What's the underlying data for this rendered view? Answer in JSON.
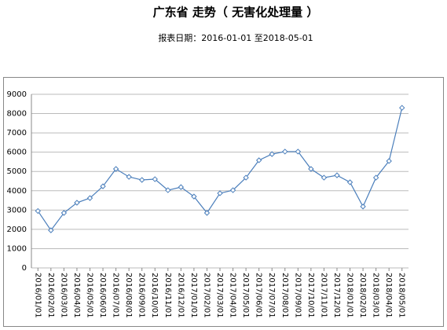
{
  "chart_data": {
    "type": "line",
    "title": "广东省  走势（  无害化处理量  ）",
    "subtitle": "报表日期：2016-01-01 至2018-05-01",
    "categories": [
      "2016/01/01",
      "2016/02/01",
      "2016/03/01",
      "2016/04/01",
      "2016/05/01",
      "2016/06/01",
      "2016/07/01",
      "2016/08/01",
      "2016/09/01",
      "2016/10/01",
      "2016/11/01",
      "2016/12/01",
      "2017/01/01",
      "2017/02/01",
      "2017/03/01",
      "2017/04/01",
      "2017/05/01",
      "2017/06/01",
      "2017/07/01",
      "2017/08/01",
      "2017/09/01",
      "2017/10/01",
      "2017/11/01",
      "2017/12/01",
      "2018/01/01",
      "2018/02/01",
      "2018/03/01",
      "2018/04/01",
      "2018/05/01"
    ],
    "series": [
      {
        "color": "#4a7ebb",
        "values": [
          2950,
          1950,
          2850,
          3380,
          3620,
          4230,
          5130,
          4720,
          4560,
          4600,
          4030,
          4190,
          3700,
          2850,
          3870,
          4030,
          4680,
          5580,
          5900,
          6030,
          6030,
          5130,
          4680,
          4800,
          4440,
          3180,
          4680,
          5540,
          8300
        ]
      }
    ],
    "ylim": [
      0,
      9000
    ],
    "yticks": [
      0,
      1000,
      2000,
      3000,
      4000,
      5000,
      6000,
      7000,
      8000,
      9000
    ],
    "grid": true
  }
}
